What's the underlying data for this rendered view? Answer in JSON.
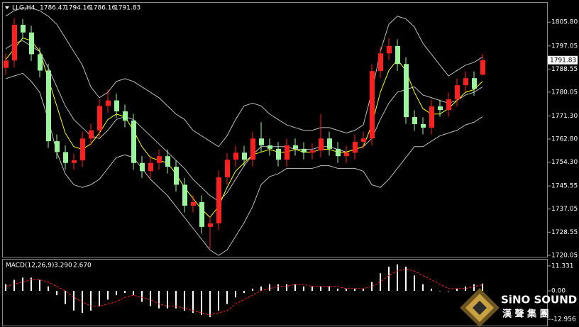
{
  "chart_data": {
    "type": "candlestick",
    "symbol": "LLG,H4",
    "up_color": "#ff2020",
    "down_color": "#9cf59c",
    "open": [
      1789.0,
      1791.7,
      1804.8,
      1802.0,
      1794.0,
      1788.0,
      1762.0,
      1758.0,
      1754.0,
      1755.0,
      1763.0,
      1766.0,
      1775.0,
      1777.0,
      1773.0,
      1769.6,
      1754.0,
      1751.0,
      1754.0,
      1756.5,
      1752.6,
      1746.0,
      1738.3,
      1739.6,
      1730.5,
      1731.8,
      1748.7,
      1755.2,
      1757.8,
      1755.2,
      1763.0,
      1760.5,
      1759.2,
      1755.2,
      1760.5,
      1759.2,
      1757.8,
      1758.6,
      1763.0,
      1759.2,
      1756.5,
      1757.8,
      1761.8,
      1763.0,
      1787.8,
      1794.3,
      1797.0,
      1790.4,
      1770.9,
      1768.3,
      1767.0,
      1774.8,
      1773.5,
      1777.4,
      1782.6,
      1785.2,
      1786.47
    ],
    "high": [
      1794.2,
      1807.3,
      1807.0,
      1804.5,
      1796.5,
      1790.5,
      1764.5,
      1760.5,
      1757.5,
      1765.5,
      1768.5,
      1777.5,
      1781.0,
      1779.5,
      1775.5,
      1772.1,
      1756.5,
      1756.5,
      1759.0,
      1759.0,
      1755.1,
      1748.5,
      1742.1,
      1742.1,
      1734.3,
      1751.2,
      1757.7,
      1760.3,
      1760.3,
      1765.5,
      1769.0,
      1763.0,
      1761.7,
      1763.0,
      1763.0,
      1761.7,
      1761.1,
      1772.0,
      1765.5,
      1761.7,
      1760.3,
      1764.3,
      1765.5,
      1790.3,
      1796.8,
      1800.0,
      1799.5,
      1792.9,
      1773.4,
      1770.8,
      1777.3,
      1777.3,
      1779.9,
      1785.1,
      1787.7,
      1787.7,
      1794.16
    ],
    "low": [
      1786.5,
      1789.2,
      1799.5,
      1791.5,
      1785.5,
      1759.5,
      1755.5,
      1751.5,
      1751.5,
      1752.5,
      1760.5,
      1763.5,
      1772.5,
      1770.5,
      1767.1,
      1751.5,
      1748.5,
      1748.5,
      1751.5,
      1750.1,
      1743.5,
      1735.8,
      1735.8,
      1728.0,
      1722.5,
      1729.3,
      1746.2,
      1752.7,
      1752.7,
      1752.7,
      1758.0,
      1756.7,
      1752.7,
      1752.7,
      1756.7,
      1755.3,
      1755.3,
      1756.1,
      1756.7,
      1754.0,
      1754.0,
      1755.3,
      1759.3,
      1760.5,
      1785.3,
      1791.8,
      1787.9,
      1768.4,
      1765.8,
      1764.5,
      1764.5,
      1771.0,
      1771.0,
      1774.9,
      1780.1,
      1778.8,
      1786.16
    ],
    "close": [
      1791.7,
      1804.8,
      1802.0,
      1794.0,
      1788.0,
      1762.0,
      1758.0,
      1754.0,
      1755.0,
      1763.0,
      1766.0,
      1775.0,
      1777.0,
      1773.0,
      1769.6,
      1754.0,
      1751.0,
      1754.0,
      1756.5,
      1752.6,
      1746.0,
      1738.3,
      1739.6,
      1730.5,
      1731.8,
      1748.7,
      1755.2,
      1757.8,
      1755.2,
      1763.0,
      1760.5,
      1759.2,
      1755.2,
      1760.5,
      1759.2,
      1757.8,
      1758.6,
      1763.0,
      1759.2,
      1756.5,
      1757.8,
      1761.8,
      1763.0,
      1787.8,
      1794.3,
      1797.0,
      1790.4,
      1770.9,
      1768.3,
      1767.0,
      1774.8,
      1773.5,
      1777.4,
      1782.6,
      1785.2,
      1781.3,
      1791.83
    ],
    "overlays": [
      {
        "color": "#bdbdbd",
        "values": [
          1808,
          1810,
          1811,
          1811,
          1810,
          1808,
          1805,
          1800,
          1795,
          1790,
          1782,
          1778,
          1780,
          1784,
          1785,
          1784,
          1782,
          1780,
          1778,
          1775,
          1772,
          1770,
          1766,
          1764,
          1762,
          1760,
          1764,
          1770,
          1775,
          1776,
          1775,
          1772,
          1770,
          1768,
          1767,
          1766,
          1766,
          1767,
          1767,
          1766,
          1765,
          1766,
          1768,
          1780,
          1795,
          1805,
          1808,
          1807,
          1804,
          1798,
          1794,
          1790,
          1786,
          1788,
          1790,
          1791,
          1793
        ]
      },
      {
        "color": "#bdbdbd",
        "values": [
          1796,
          1798,
          1799,
          1797,
          1795,
          1789,
          1782,
          1775,
          1770,
          1767,
          1764,
          1763,
          1766,
          1770,
          1771,
          1770,
          1767,
          1764,
          1761,
          1758,
          1755,
          1752,
          1748,
          1745,
          1742,
          1740,
          1743,
          1748,
          1753,
          1757,
          1760,
          1760,
          1760,
          1760,
          1759,
          1759,
          1759,
          1760,
          1760,
          1759,
          1758,
          1759,
          1760,
          1763,
          1770,
          1776,
          1780,
          1781,
          1782,
          1779,
          1778,
          1777,
          1776,
          1777,
          1779,
          1780,
          1782
        ]
      },
      {
        "color": "#bdbdbd",
        "values": [
          1785,
          1786,
          1787,
          1784,
          1780,
          1770,
          1758,
          1750,
          1746,
          1745,
          1746,
          1748,
          1752,
          1756,
          1757,
          1756,
          1752,
          1748,
          1745,
          1742,
          1738,
          1734,
          1730,
          1726,
          1722,
          1720,
          1722,
          1727,
          1732,
          1738,
          1746,
          1749,
          1750,
          1752,
          1752,
          1752,
          1752,
          1753,
          1753,
          1752,
          1752,
          1752,
          1751,
          1746,
          1745,
          1748,
          1752,
          1756,
          1760,
          1760,
          1762,
          1764,
          1765,
          1766,
          1768,
          1769,
          1771
        ]
      },
      {
        "color": "#ffff00",
        "values": [
          1792,
          1796,
          1800,
          1799,
          1795,
          1785,
          1775,
          1765,
          1760,
          1759,
          1761,
          1765,
          1770,
          1772,
          1771,
          1766,
          1760,
          1756,
          1755,
          1754,
          1750,
          1745,
          1741,
          1737,
          1734,
          1738,
          1745,
          1751,
          1754,
          1757,
          1758,
          1759,
          1758,
          1758,
          1759,
          1758,
          1758,
          1759,
          1759,
          1758,
          1758,
          1759,
          1760,
          1768,
          1780,
          1788,
          1792,
          1788,
          1780,
          1774,
          1772,
          1772,
          1774,
          1777,
          1780,
          1781,
          1784
        ]
      }
    ],
    "ylim": [
      1719.5,
      1812.9
    ],
    "yticks": [
      1720.05,
      1728.55,
      1737.05,
      1745.55,
      {
        "value": 1754.3,
        "label": "1754.30"
      },
      {
        "value": 1762.8,
        "label": "1762.80"
      },
      {
        "value": 1771.3,
        "label": "1771.30"
      },
      1780.05,
      1788.55,
      1797.05,
      {
        "value": 1805.8,
        "label": "1805.80"
      }
    ],
    "macd": {
      "label": "MACD(12,26,9)",
      "histogram": [
        3,
        5,
        6,
        6,
        5,
        2,
        -2,
        -6,
        -9,
        -10,
        -9,
        -7,
        -4,
        -2,
        -1,
        -2,
        -5,
        -7,
        -8,
        -8,
        -8,
        -9,
        -10,
        -11,
        -12,
        -9,
        -6,
        -3,
        -1,
        1,
        2,
        3,
        3,
        3,
        3,
        2,
        2,
        2,
        2,
        1,
        1,
        1,
        1,
        4,
        8,
        11,
        12,
        11,
        7,
        3,
        1,
        0,
        0,
        1,
        2,
        3,
        3.29
      ],
      "signal": [
        2,
        3,
        4,
        5,
        5,
        4,
        2,
        0,
        -3,
        -5,
        -7,
        -7,
        -6,
        -5,
        -3,
        -2,
        -3,
        -4,
        -6,
        -7,
        -7,
        -8,
        -9,
        -10,
        -11,
        -10,
        -9,
        -6,
        -4,
        -2,
        0,
        1,
        2,
        2,
        3,
        3,
        2,
        2,
        2,
        2,
        1,
        1,
        1,
        2,
        4,
        7,
        9,
        10,
        9,
        7,
        5,
        3,
        1,
        1,
        1,
        2,
        2.67
      ],
      "current_labels": [
        "3.290",
        "2.670"
      ],
      "hist_color": "#ffffff",
      "signal_color": "#ff2020",
      "ylim": [
        -15.5,
        14.2
      ],
      "yticks": [
        11.331,
        {
          "value": 0,
          "label": "0.00"
        },
        -12.956
      ]
    }
  },
  "logo": {
    "name": "SiNO SOUND",
    "chinese": "漢 聲 集 團"
  }
}
